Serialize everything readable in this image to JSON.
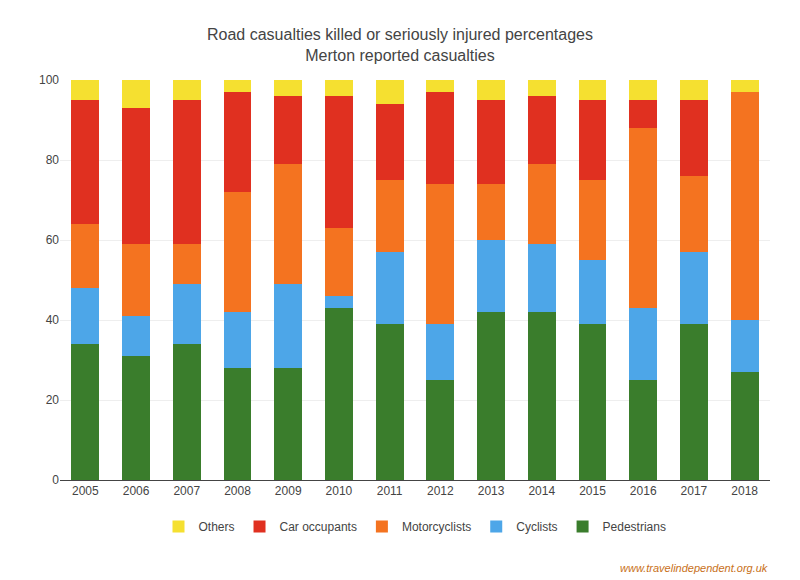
{
  "chart_data": {
    "type": "bar",
    "title": "Road casualties killed or seriously injured percentages",
    "subtitle": "Merton reported casualties",
    "annotations": [
      "www.travelindependent.org.uk"
    ],
    "categories": [
      "2005",
      "2006",
      "2007",
      "2008",
      "2009",
      "2010",
      "2011",
      "2012",
      "2013",
      "2014",
      "2015",
      "2016",
      "2017",
      "2018"
    ],
    "series": [
      {
        "name": "Pedestrians",
        "color": "#3a7d2c",
        "values": [
          34,
          31,
          34,
          28,
          28,
          43,
          39,
          25,
          42,
          42,
          39,
          25,
          39,
          27
        ]
      },
      {
        "name": "Cyclists",
        "color": "#4da6e8",
        "values": [
          14,
          10,
          15,
          14,
          21,
          3,
          18,
          14,
          18,
          17,
          16,
          18,
          18,
          13
        ]
      },
      {
        "name": "Motorcyclists",
        "color": "#f47320",
        "values": [
          16,
          18,
          10,
          30,
          30,
          17,
          18,
          35,
          14,
          20,
          20,
          45,
          19,
          57
        ]
      },
      {
        "name": "Car occupants",
        "color": "#e03020",
        "values": [
          31,
          34,
          36,
          25,
          17,
          33,
          19,
          23,
          21,
          17,
          20,
          7,
          19,
          0
        ]
      },
      {
        "name": "Others",
        "color": "#f5e030",
        "values": [
          5,
          7,
          5,
          3,
          4,
          4,
          6,
          3,
          5,
          4,
          5,
          5,
          5,
          3
        ]
      }
    ],
    "stacked": true,
    "ylim": [
      0,
      100
    ],
    "yticks": [
      0,
      20,
      40,
      60,
      80,
      100
    ],
    "grid": true,
    "legend": "bottom"
  }
}
